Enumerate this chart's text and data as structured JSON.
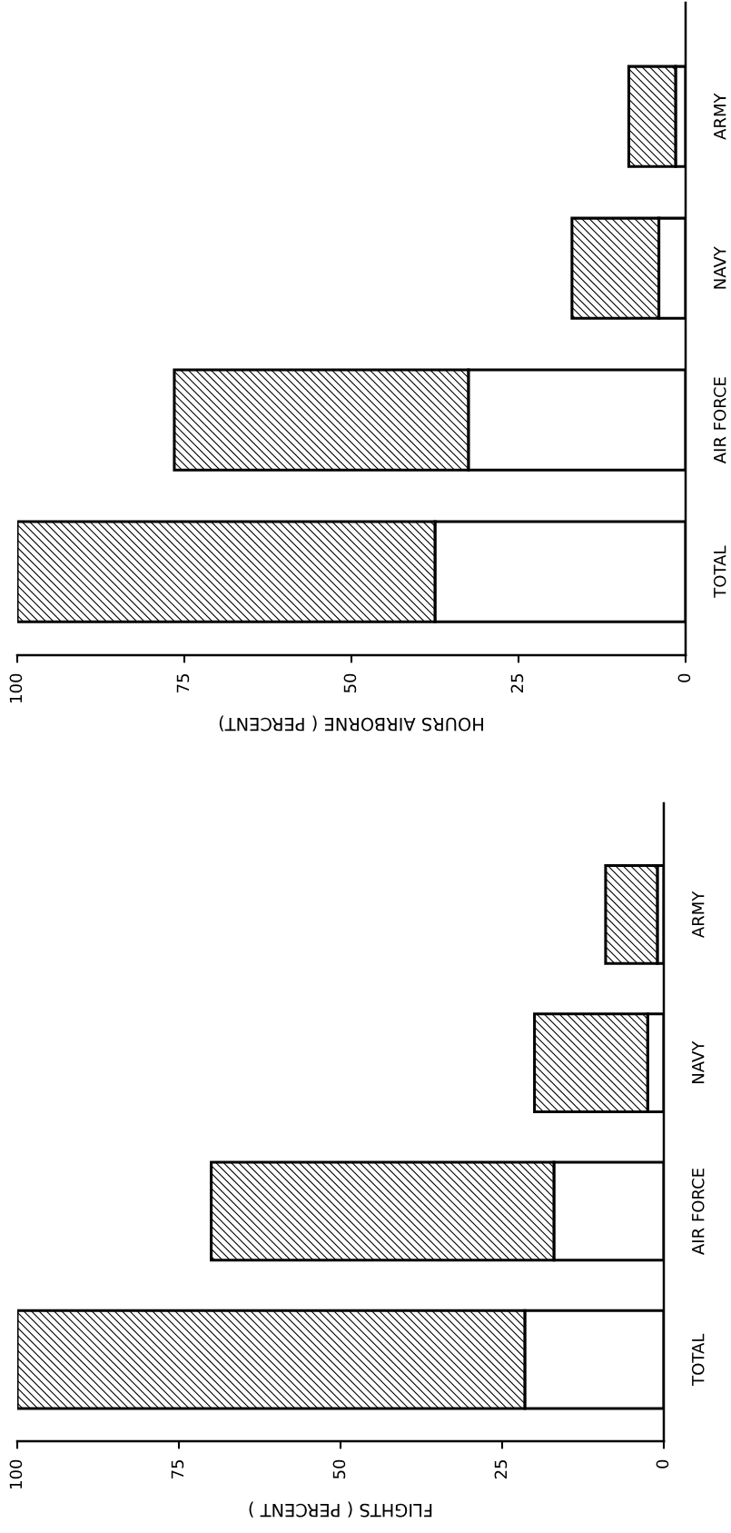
{
  "chart_data": [
    {
      "type": "bar",
      "orientation": "horizontal",
      "stacked": true,
      "xlabel": "HOURS AIRBORNE ( PERCENT)",
      "categories": [
        "ARMY",
        "NAVY",
        "AIR FORCE",
        "TOTAL"
      ],
      "xlim": [
        100,
        0
      ],
      "xticks": [
        100,
        75,
        50,
        25,
        0
      ],
      "grid": false,
      "series": [
        {
          "color": "#ffffff",
          "values": [
            1.5,
            4,
            32.5,
            37.5
          ]
        },
        {
          "color": "#000000",
          "values": [
            7,
            13,
            44,
            62.5
          ]
        }
      ]
    },
    {
      "type": "bar",
      "orientation": "horizontal",
      "stacked": true,
      "xlabel": "FLIGHTS ( PERCENT )",
      "categories": [
        "ARMY",
        "NAVY",
        "AIR FORCE",
        "TOTAL"
      ],
      "xlim": [
        100,
        0
      ],
      "xticks": [
        100,
        75,
        50,
        25,
        0
      ],
      "grid": false,
      "series": [
        {
          "color": "#ffffff",
          "values": [
            1,
            2.5,
            17,
            21.5
          ]
        },
        {
          "color": "#000000",
          "values": [
            8,
            17.5,
            53,
            78.5
          ]
        }
      ]
    }
  ]
}
